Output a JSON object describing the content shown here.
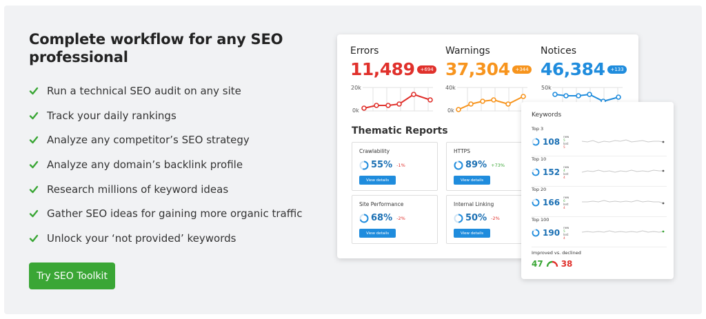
{
  "headline": "Complete workflow for any SEO professional",
  "features": [
    "Run a technical SEO audit on any site",
    "Track your daily rankings",
    "Analyze any competitor’s SEO strategy",
    "Analyze any domain’s backlink profile",
    "Research millions of keyword ideas",
    "Gather SEO ideas for gaining more organic traffic",
    "Unlock your ‘not provided’ keywords"
  ],
  "cta_label": "Try SEO Toolkit",
  "icons": {
    "feature": "check-icon"
  },
  "colors": {
    "green": "#3aa635",
    "red": "#e0302b",
    "orange": "#f7941d",
    "blue": "#1f8cdd",
    "panel": "#f1f2f4"
  },
  "metrics": {
    "errors": {
      "label": "Errors",
      "value": "11,489",
      "badge": "+694",
      "color": "#e0302b",
      "ymax": "20k",
      "ymin": "0k"
    },
    "warnings": {
      "label": "Warnings",
      "value": "37,304",
      "badge": "+344",
      "color": "#f7941d",
      "ymax": "40k",
      "ymin": "0k"
    },
    "notices": {
      "label": "Notices",
      "value": "46,384",
      "badge": "+133",
      "color": "#1f8cdd",
      "ymax": "50k",
      "ymin": "0k"
    }
  },
  "thematic": {
    "title": "Thematic Reports",
    "view_label": "View details",
    "reports": [
      {
        "title": "Crawlability",
        "value": "55%",
        "delta": "-1%",
        "delta_color": "#e0302b"
      },
      {
        "title": "HTTPS",
        "value": "89%",
        "delta": "+73%",
        "delta_color": "#3aa635"
      },
      {
        "title": "Site Performance",
        "value": "68%",
        "delta": "-2%",
        "delta_color": "#e0302b"
      },
      {
        "title": "Internal Linking",
        "value": "50%",
        "delta": "-2%",
        "delta_color": "#e0302b"
      }
    ]
  },
  "keywords": {
    "title": "Keywords",
    "new_label": "new",
    "lost_label": "lost",
    "rows": [
      {
        "label": "Top 3",
        "value": "108",
        "new": "5",
        "lost": "5"
      },
      {
        "label": "Top 10",
        "value": "152",
        "new": "4",
        "lost": "4"
      },
      {
        "label": "Top 20",
        "value": "166",
        "new": "6",
        "lost": "4"
      },
      {
        "label": "Top 100",
        "value": "190",
        "new": "5",
        "lost": "4"
      }
    ],
    "footer_label": "Improved vs. declined",
    "improved": "47",
    "declined": "38"
  }
}
